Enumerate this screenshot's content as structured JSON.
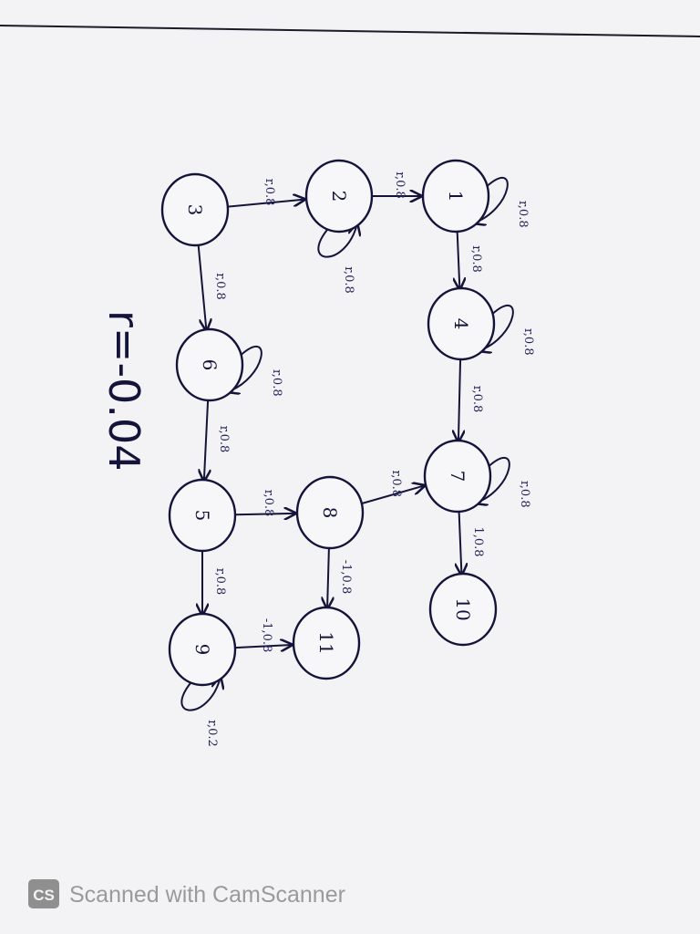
{
  "reward_note": "r=-0.04",
  "states": [
    {
      "id": "s1",
      "label": "1"
    },
    {
      "id": "s2",
      "label": "2"
    },
    {
      "id": "s3",
      "label": "3"
    },
    {
      "id": "s4",
      "label": "4"
    },
    {
      "id": "s5",
      "label": "5"
    },
    {
      "id": "s6",
      "label": "6"
    },
    {
      "id": "s7",
      "label": "7"
    },
    {
      "id": "s8",
      "label": "8"
    },
    {
      "id": "s9",
      "label": "9"
    },
    {
      "id": "s10",
      "label": "10"
    },
    {
      "id": "s11",
      "label": "11"
    }
  ],
  "edges": [
    {
      "from": "s3",
      "to": "s2",
      "label": "r,0.8"
    },
    {
      "from": "s2",
      "to": "s1",
      "label": "r,0.8"
    },
    {
      "from": "s3",
      "to": "s6",
      "label": "r,0.8"
    },
    {
      "from": "s6",
      "to": "s5",
      "label": "r,0.8"
    },
    {
      "from": "s5",
      "to": "s9",
      "label": "r,0.8"
    },
    {
      "from": "s5",
      "to": "s8",
      "label": "r,0.8"
    },
    {
      "from": "s8",
      "to": "s7",
      "label": "r,0.8"
    },
    {
      "from": "s8",
      "to": "s11",
      "label": "-1,0.8"
    },
    {
      "from": "s9",
      "to": "s11",
      "label": "-1,0.8"
    },
    {
      "from": "s1",
      "to": "s4",
      "label": "r,0.8"
    },
    {
      "from": "s4",
      "to": "s7",
      "label": "r,0.8"
    },
    {
      "from": "s7",
      "to": "s10",
      "label": "1,0.8"
    }
  ],
  "self_loops": [
    {
      "state": "s2",
      "label": "r,0.8"
    },
    {
      "state": "s1",
      "label": "r,0.8"
    },
    {
      "state": "s4",
      "label": "r,0.8"
    },
    {
      "state": "s6",
      "label": "r,0.8"
    },
    {
      "state": "s7",
      "label": "r,0.8"
    },
    {
      "state": "s9",
      "label": "r,0.2"
    }
  ],
  "watermark": {
    "badge": "CS",
    "text": "Scanned with CamScanner"
  }
}
